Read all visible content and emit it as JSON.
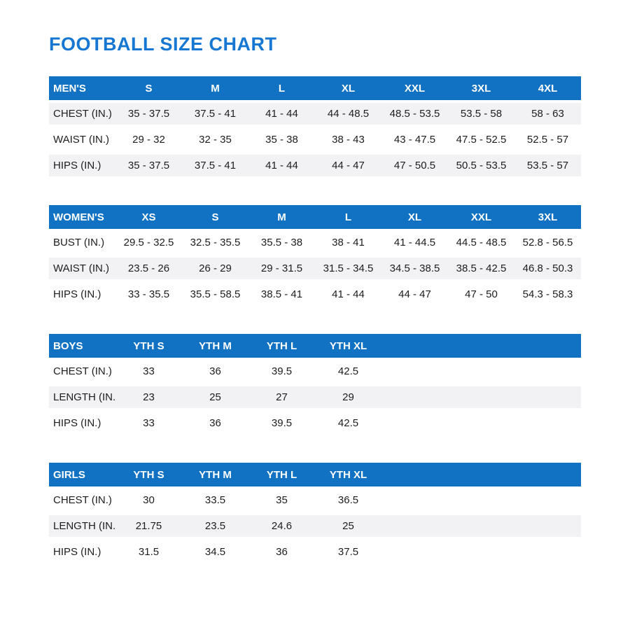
{
  "page_title": "FOOTBALL SIZE CHART",
  "colors": {
    "title_blue": "#1677d3",
    "header_blue": "#1172c3",
    "stripe_gray": "#f2f2f5",
    "text_dark": "#1d1d1f",
    "header_text": "#ffffff"
  },
  "tables": [
    {
      "id": "mens",
      "group_label": "MEN'S",
      "sizes": [
        "S",
        "M",
        "L",
        "XL",
        "XXL",
        "3XL",
        "4XL"
      ],
      "rows": [
        {
          "label": "CHEST (IN.)",
          "values": [
            "35 - 37.5",
            "37.5 - 41",
            "41 - 44",
            "44 - 48.5",
            "48.5 - 53.5",
            "53.5 - 58",
            "58 - 63"
          ]
        },
        {
          "label": "WAIST (IN.)",
          "values": [
            "29 - 32",
            "32 - 35",
            "35 - 38",
            "38 - 43",
            "43 - 47.5",
            "47.5 - 52.5",
            "52.5 - 57"
          ]
        },
        {
          "label": "HIPS (IN.)",
          "values": [
            "35 - 37.5",
            "37.5 - 41",
            "41 - 44",
            "44 - 47",
            "47 - 50.5",
            "50.5 - 53.5",
            "53.5 - 57"
          ]
        }
      ],
      "shaded_rows": [
        0,
        2
      ]
    },
    {
      "id": "womens",
      "group_label": "WOMEN'S",
      "sizes": [
        "XS",
        "S",
        "M",
        "L",
        "XL",
        "XXL",
        "3XL"
      ],
      "rows": [
        {
          "label": "BUST (IN.)",
          "values": [
            "29.5 - 32.5",
            "32.5 - 35.5",
            "35.5 - 38",
            "38 - 41",
            "41 - 44.5",
            "44.5 - 48.5",
            "52.8 - 56.5"
          ]
        },
        {
          "label": "WAIST (IN.)",
          "values": [
            "23.5 - 26",
            "26 - 29",
            "29 - 31.5",
            "31.5 - 34.5",
            "34.5 - 38.5",
            "38.5 - 42.5",
            "46.8 - 50.3"
          ]
        },
        {
          "label": "HIPS (IN.)",
          "values": [
            "33 - 35.5",
            "35.5 - 58.5",
            "38.5 - 41",
            "41 - 44",
            "44 - 47",
            "47 - 50",
            "54.3 - 58.3"
          ]
        }
      ],
      "shaded_rows": [
        1
      ]
    },
    {
      "id": "boys",
      "group_label": "BOYS",
      "sizes": [
        "YTH S",
        "YTH M",
        "YTH L",
        "YTH XL"
      ],
      "rows": [
        {
          "label": "CHEST (IN.)",
          "values": [
            "33",
            "36",
            "39.5",
            "42.5"
          ]
        },
        {
          "label": "LENGTH (IN.)",
          "values": [
            "23",
            "25",
            "27",
            "29"
          ]
        },
        {
          "label": "HIPS (IN.)",
          "values": [
            "33",
            "36",
            "39.5",
            "42.5"
          ]
        }
      ],
      "shaded_rows": [
        1
      ]
    },
    {
      "id": "girls",
      "group_label": "GIRLS",
      "sizes": [
        "YTH S",
        "YTH M",
        "YTH L",
        "YTH XL"
      ],
      "rows": [
        {
          "label": "CHEST (IN.)",
          "values": [
            "30",
            "33.5",
            "35",
            "36.5"
          ]
        },
        {
          "label": "LENGTH (IN.)",
          "values": [
            "21.75",
            "23.5",
            "24.6",
            "25"
          ]
        },
        {
          "label": "HIPS (IN.)",
          "values": [
            "31.5",
            "34.5",
            "36",
            "37.5"
          ]
        }
      ],
      "shaded_rows": [
        1
      ]
    }
  ]
}
